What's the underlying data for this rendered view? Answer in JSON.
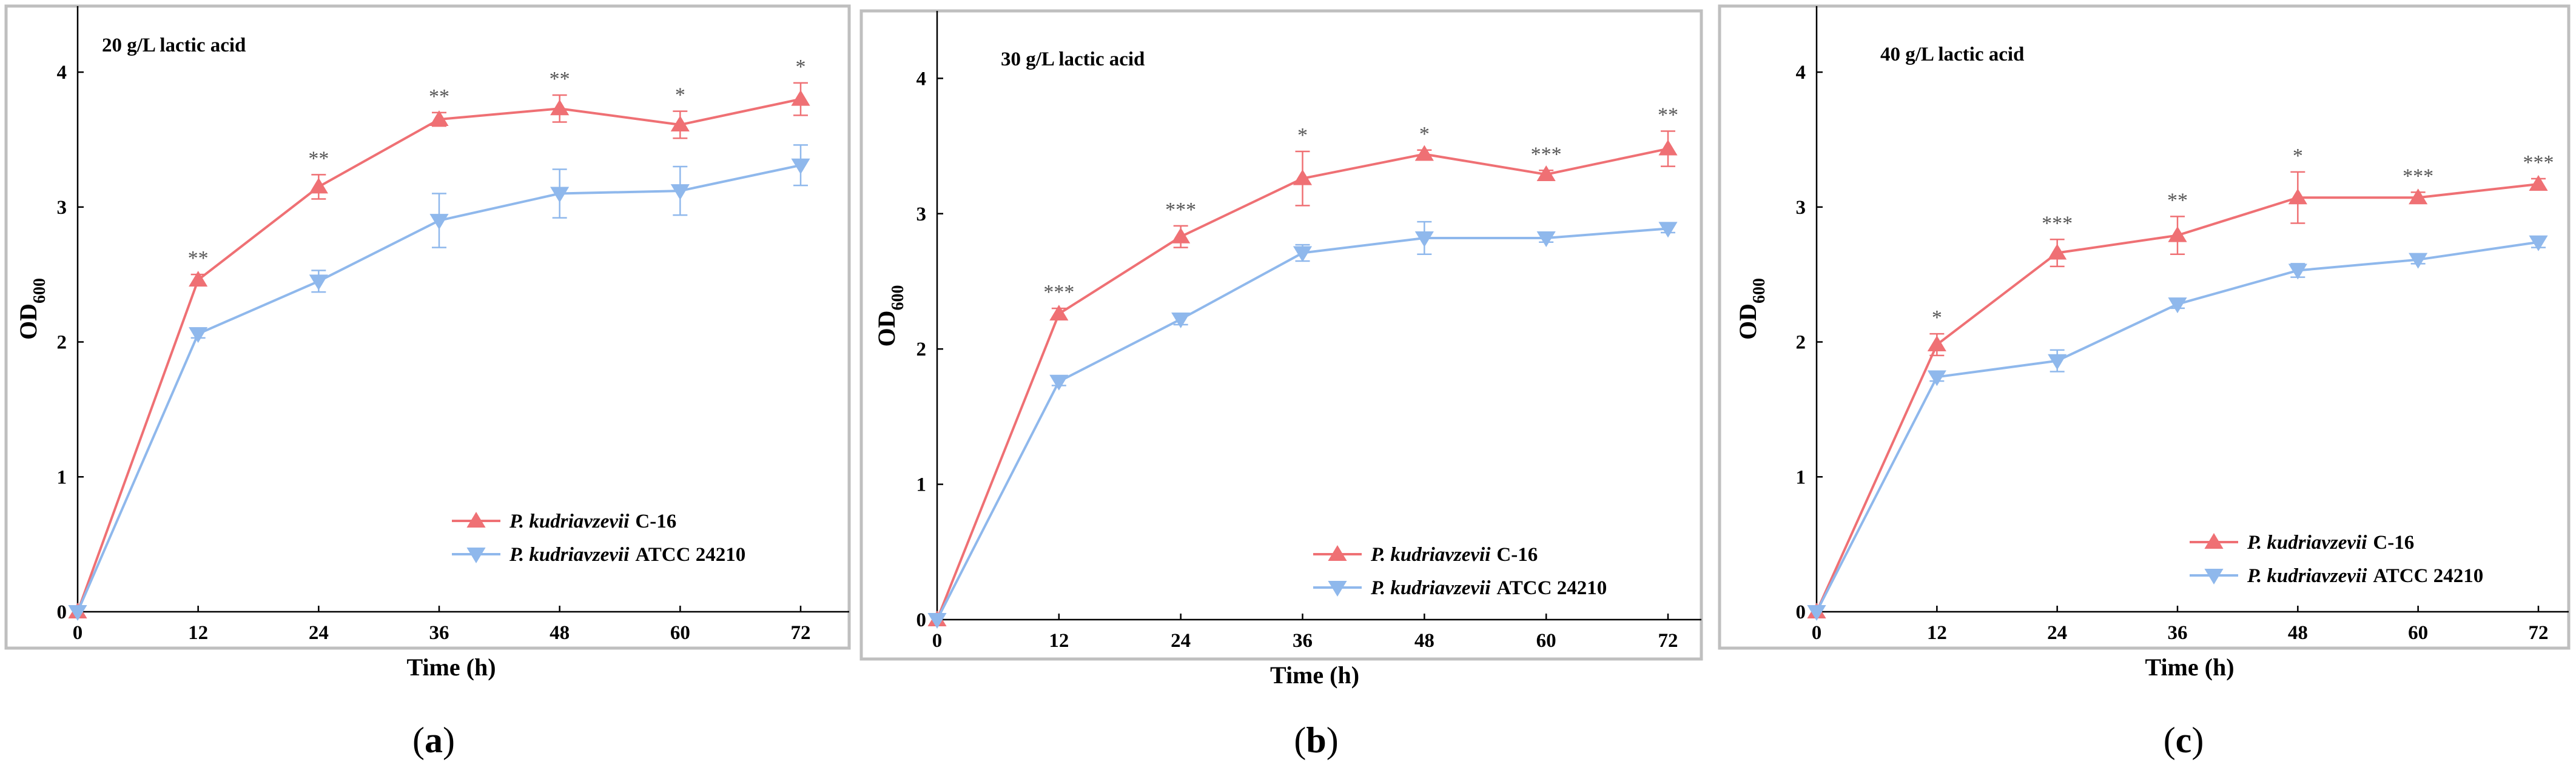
{
  "colors": {
    "series_c16": "#ef7074",
    "series_atcc": "#8fb8ec",
    "frame": "#bfbfbf",
    "significance": "#555555"
  },
  "chart_data": [
    {
      "type": "line",
      "panel_label": "(a)",
      "panel_label_letter": "a",
      "title": "20 g/L   lactic acid",
      "xlabel": "Time (h)",
      "ylabel_main": "OD",
      "ylabel_sub": "600",
      "x": [
        0,
        12,
        24,
        36,
        48,
        60,
        72
      ],
      "x_ticks": [
        "0",
        "12",
        "24",
        "36",
        "48",
        "60",
        "72"
      ],
      "y_ticks": [
        "0",
        "1",
        "2",
        "3",
        "4"
      ],
      "xlim": [
        0,
        75
      ],
      "ylim": [
        0,
        4.4
      ],
      "legend_position": "bottom-right",
      "series": [
        {
          "name": "P. kudriavzevii C-16",
          "name_italic": "P. kudriavzevii",
          "name_strain": "C-16",
          "marker": "triangle-up",
          "values": [
            0,
            2.46,
            3.15,
            3.65,
            3.73,
            3.61,
            3.8
          ],
          "errors": [
            0,
            0.04,
            0.09,
            0.05,
            0.1,
            0.1,
            0.12
          ]
        },
        {
          "name": "P. kudriavzevii ATCC 24210",
          "name_italic": "P. kudriavzevii",
          "name_strain": "ATCC 24210",
          "marker": "triangle-down",
          "values": [
            0,
            2.06,
            2.45,
            2.9,
            3.1,
            3.12,
            3.31
          ],
          "errors": [
            0,
            0.03,
            0.08,
            0.2,
            0.18,
            0.18,
            0.15
          ]
        }
      ],
      "significance": [
        "",
        "**",
        "**",
        "**",
        "**",
        "*",
        "*"
      ]
    },
    {
      "type": "line",
      "panel_label": "(b)",
      "panel_label_letter": "b",
      "title": "30 g/L   lactic acid",
      "xlabel": "Time (h)",
      "ylabel_main": "OD",
      "ylabel_sub": "600",
      "x": [
        0,
        12,
        24,
        36,
        48,
        60,
        72
      ],
      "x_ticks": [
        "0",
        "12",
        "24",
        "36",
        "48",
        "60",
        "72"
      ],
      "y_ticks": [
        "0",
        "1",
        "2",
        "3",
        "4"
      ],
      "xlim": [
        0,
        75
      ],
      "ylim": [
        0,
        4.4
      ],
      "legend_position": "bottom-right",
      "series": [
        {
          "name": "P. kudriavzevii C-16",
          "name_italic": "P. kudriavzevii",
          "name_strain": "C-16",
          "marker": "triangle-up",
          "values": [
            0,
            2.26,
            2.83,
            3.26,
            3.44,
            3.29,
            3.48
          ],
          "errors": [
            0,
            0.04,
            0.08,
            0.2,
            0.03,
            0.03,
            0.13
          ]
        },
        {
          "name": "P. kudriavzevii ATCC 24210",
          "name_italic": "P. kudriavzevii",
          "name_strain": "ATCC 24210",
          "marker": "triangle-down",
          "values": [
            0,
            1.76,
            2.22,
            2.71,
            2.82,
            2.82,
            2.89
          ],
          "errors": [
            0,
            0.03,
            0.04,
            0.06,
            0.12,
            0.03,
            0.03
          ]
        }
      ],
      "significance": [
        "",
        "***",
        "***",
        "*",
        "*",
        "***",
        "**"
      ]
    },
    {
      "type": "line",
      "panel_label": "(c)",
      "panel_label_letter": "c",
      "title": "40 g/L   lactic acid",
      "xlabel": "Time (h)",
      "ylabel_main": "OD",
      "ylabel_sub": "600",
      "x": [
        0,
        12,
        24,
        36,
        48,
        60,
        72
      ],
      "x_ticks": [
        "0",
        "12",
        "24",
        "36",
        "48",
        "60",
        "72"
      ],
      "y_ticks": [
        "0",
        "1",
        "2",
        "3",
        "4"
      ],
      "xlim": [
        0,
        75
      ],
      "ylim": [
        0,
        4.4
      ],
      "legend_position": "bottom-right",
      "series": [
        {
          "name": "P. kudriavzevii C-16",
          "name_italic": "P. kudriavzevii",
          "name_strain": "C-16",
          "marker": "triangle-up",
          "values": [
            0,
            1.98,
            2.66,
            2.79,
            3.07,
            3.07,
            3.17
          ],
          "errors": [
            0,
            0.08,
            0.1,
            0.14,
            0.19,
            0.04,
            0.04
          ]
        },
        {
          "name": "P. kudriavzevii ATCC 24210",
          "name_italic": "P. kudriavzevii",
          "name_strain": "ATCC 24210",
          "marker": "triangle-down",
          "values": [
            0,
            1.74,
            1.86,
            2.28,
            2.53,
            2.61,
            2.74
          ],
          "errors": [
            0,
            0.03,
            0.08,
            0.03,
            0.05,
            0.03,
            0.04
          ]
        }
      ],
      "significance": [
        "",
        "*",
        "***",
        "**",
        "*",
        "***",
        "***"
      ]
    }
  ]
}
